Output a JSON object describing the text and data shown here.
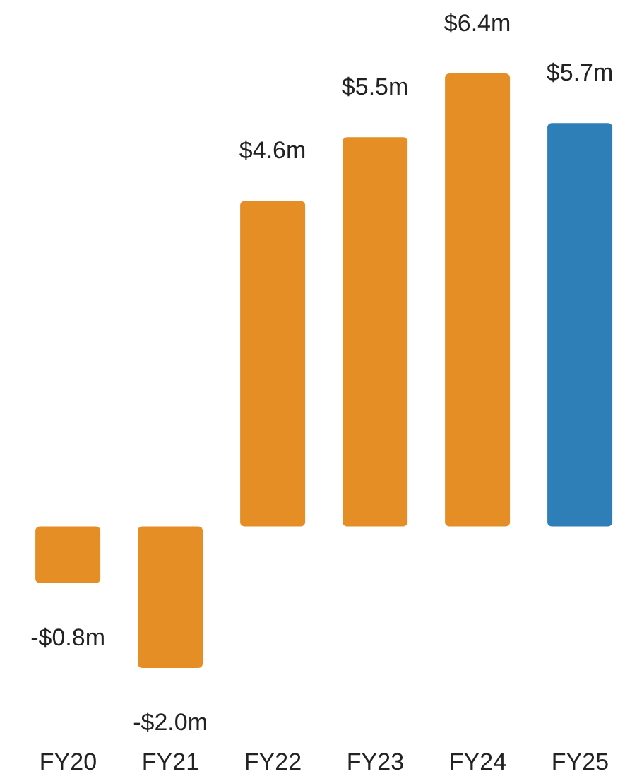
{
  "chart_data": {
    "type": "bar",
    "categories": [
      "FY20",
      "FY21",
      "FY22",
      "FY23",
      "FY24",
      "FY25"
    ],
    "values": [
      -0.8,
      -2.0,
      4.6,
      5.5,
      6.4,
      5.7
    ],
    "value_labels": [
      "-$0.8m",
      "-$2.0m",
      "$4.6m",
      "$5.5m",
      "$6.4m",
      "$5.7m"
    ],
    "colors": [
      "#e58e26",
      "#e58e26",
      "#e58e26",
      "#e58e26",
      "#e58e26",
      "#2e7fb8"
    ],
    "grid": false,
    "legend": false
  }
}
